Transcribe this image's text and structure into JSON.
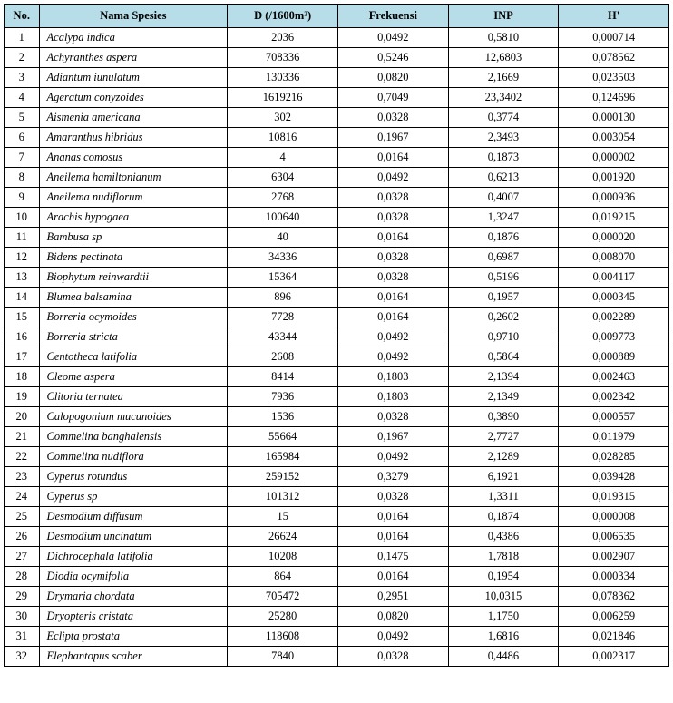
{
  "headers": {
    "no": "No.",
    "species": "Nama Spesies",
    "d": "D (/1600m²)",
    "freq": "Frekuensi",
    "inp": "INP",
    "h": "H'"
  },
  "rows": [
    {
      "no": "1",
      "species": "Acalypa indica",
      "d": "2036",
      "freq": "0,0492",
      "inp": "0,5810",
      "h": "0,000714"
    },
    {
      "no": "2",
      "species": "Achyranthes aspera",
      "d": "708336",
      "freq": "0,5246",
      "inp": "12,6803",
      "h": "0,078562"
    },
    {
      "no": "3",
      "species": "Adiantum iunulatum",
      "d": "130336",
      "freq": "0,0820",
      "inp": "2,1669",
      "h": "0,023503"
    },
    {
      "no": "4",
      "species": "Ageratum conyzoides",
      "d": "1619216",
      "freq": "0,7049",
      "inp": "23,3402",
      "h": "0,124696"
    },
    {
      "no": "5",
      "species": "Aismenia americana",
      "d": "302",
      "freq": "0,0328",
      "inp": "0,3774",
      "h": "0,000130"
    },
    {
      "no": "6",
      "species": "Amaranthus hibridus",
      "d": "10816",
      "freq": "0,1967",
      "inp": "2,3493",
      "h": "0,003054"
    },
    {
      "no": "7",
      "species": "Ananas comosus",
      "d": "4",
      "freq": "0,0164",
      "inp": "0,1873",
      "h": "0,000002"
    },
    {
      "no": "8",
      "species": "Aneilema hamiltonianum",
      "d": "6304",
      "freq": "0,0492",
      "inp": "0,6213",
      "h": "0,001920"
    },
    {
      "no": "9",
      "species": "Aneilema nudiflorum",
      "d": "2768",
      "freq": "0,0328",
      "inp": "0,4007",
      "h": "0,000936"
    },
    {
      "no": "10",
      "species": "Arachis hypogaea",
      "d": "100640",
      "freq": "0,0328",
      "inp": "1,3247",
      "h": "0,019215"
    },
    {
      "no": "11",
      "species": "Bambusa sp",
      "d": "40",
      "freq": "0,0164",
      "inp": "0,1876",
      "h": "0,000020"
    },
    {
      "no": "12",
      "species": "Bidens pectinata",
      "d": "34336",
      "freq": "0,0328",
      "inp": "0,6987",
      "h": "0,008070"
    },
    {
      "no": "13",
      "species": "Biophytum reinwardtii",
      "d": "15364",
      "freq": "0,0328",
      "inp": "0,5196",
      "h": "0,004117"
    },
    {
      "no": "14",
      "species": "Blumea balsamina",
      "d": "896",
      "freq": "0,0164",
      "inp": "0,1957",
      "h": "0,000345"
    },
    {
      "no": "15",
      "species": "Borreria ocymoides",
      "d": "7728",
      "freq": "0,0164",
      "inp": "0,2602",
      "h": "0,002289"
    },
    {
      "no": "16",
      "species": "Borreria stricta",
      "d": "43344",
      "freq": "0,0492",
      "inp": "0,9710",
      "h": "0,009773"
    },
    {
      "no": "17",
      "species": "Centotheca latifolia",
      "d": "2608",
      "freq": "0,0492",
      "inp": "0,5864",
      "h": "0,000889"
    },
    {
      "no": "18",
      "species": "Cleome aspera",
      "d": "8414",
      "freq": "0,1803",
      "inp": "2,1394",
      "h": "0,002463"
    },
    {
      "no": "19",
      "species": "Clitoria ternatea",
      "d": "7936",
      "freq": "0,1803",
      "inp": "2,1349",
      "h": "0,002342"
    },
    {
      "no": "20",
      "species": "Calopogonium mucunoides",
      "d": "1536",
      "freq": "0,0328",
      "inp": "0,3890",
      "h": "0,000557"
    },
    {
      "no": "21",
      "species": "Commelina banghalensis",
      "d": "55664",
      "freq": "0,1967",
      "inp": "2,7727",
      "h": "0,011979"
    },
    {
      "no": "22",
      "species": "Commelina nudiflora",
      "d": "165984",
      "freq": "0,0492",
      "inp": "2,1289",
      "h": "0,028285"
    },
    {
      "no": "23",
      "species": "Cyperus rotundus",
      "d": "259152",
      "freq": "0,3279",
      "inp": "6,1921",
      "h": "0,039428"
    },
    {
      "no": "24",
      "species": "Cyperus sp",
      "d": "101312",
      "freq": "0,0328",
      "inp": "1,3311",
      "h": "0,019315"
    },
    {
      "no": "25",
      "species": "Desmodium diffusum",
      "d": "15",
      "freq": "0,0164",
      "inp": "0,1874",
      "h": "0,000008"
    },
    {
      "no": "26",
      "species": "Desmodium uncinatum",
      "d": "26624",
      "freq": "0,0164",
      "inp": "0,4386",
      "h": "0,006535"
    },
    {
      "no": "27",
      "species": "Dichrocephala latifolia",
      "d": "10208",
      "freq": "0,1475",
      "inp": "1,7818",
      "h": "0,002907"
    },
    {
      "no": "28",
      "species": "Diodia ocymifolia",
      "d": "864",
      "freq": "0,0164",
      "inp": "0,1954",
      "h": "0,000334"
    },
    {
      "no": "29",
      "species": "Drymaria chordata",
      "d": "705472",
      "freq": "0,2951",
      "inp": "10,0315",
      "h": "0,078362"
    },
    {
      "no": "30",
      "species": "Dryopteris cristata",
      "d": "25280",
      "freq": "0,0820",
      "inp": "1,1750",
      "h": "0,006259"
    },
    {
      "no": "31",
      "species": "Eclipta prostata",
      "d": "118608",
      "freq": "0,0492",
      "inp": "1,6816",
      "h": "0,021846"
    },
    {
      "no": "32",
      "species": "Elephantopus scaber",
      "d": "7840",
      "freq": "0,0328",
      "inp": "0,4486",
      "h": "0,002317"
    }
  ]
}
